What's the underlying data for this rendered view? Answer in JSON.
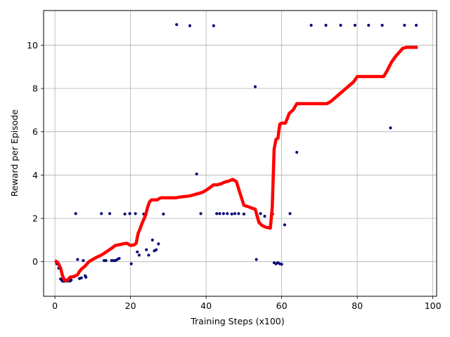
{
  "chart_data": {
    "type": "scatter",
    "xlabel": "Training Steps (x100)",
    "ylabel": "Reward per Episode",
    "xlim": [
      -3,
      101
    ],
    "ylim": [
      -1.6,
      11.6
    ],
    "xticks": [
      0,
      20,
      40,
      60,
      80,
      100
    ],
    "yticks": [
      0,
      2,
      4,
      6,
      8,
      10
    ],
    "grid": true,
    "colors": {
      "points": "#0a0a78",
      "line": "#ff0000",
      "grid": "#b0b0b0"
    },
    "series": [
      {
        "kind": "points",
        "x": [
          0.5,
          1.0,
          1.5,
          1.8,
          2.0,
          2.2,
          2.5,
          2.8,
          3.0,
          3.3,
          3.6,
          4.0,
          4.3,
          5.0,
          5.5,
          6.0,
          6.5,
          7.0,
          7.5,
          8.0,
          8.2,
          12.3,
          13.0,
          13.5,
          14.5,
          15.0,
          15.5,
          16.0,
          16.5,
          17.0,
          18.5,
          19.8,
          20.2,
          21.3,
          21.8,
          22.3,
          23.5,
          24.2,
          24.8,
          25.8,
          26.3,
          26.8,
          27.4,
          28.7,
          32.2,
          35.7,
          37.5,
          38.6,
          42.0,
          42.8,
          43.6,
          44.6,
          45.6,
          46.8,
          47.6,
          48.6,
          50.0,
          53.0,
          53.3,
          54.4,
          55.5,
          57.6,
          58.0,
          58.5,
          59.0,
          59.5,
          60.0,
          60.8,
          62.2,
          64.0,
          67.8,
          71.7,
          75.6,
          79.4,
          83.0,
          86.6,
          88.8,
          92.5,
          95.6
        ],
        "y": [
          -0.1,
          -0.3,
          -0.8,
          -0.85,
          -0.9,
          -0.9,
          -0.9,
          -0.85,
          -0.9,
          -0.9,
          -0.85,
          -0.9,
          -0.85,
          -0.7,
          2.22,
          0.1,
          -0.78,
          -0.75,
          0.05,
          -0.65,
          -0.72,
          2.22,
          0.05,
          0.05,
          2.22,
          0.05,
          0.05,
          0.05,
          0.1,
          0.15,
          2.2,
          2.22,
          -0.1,
          2.22,
          0.45,
          0.3,
          2.2,
          0.55,
          0.3,
          1.0,
          0.5,
          0.55,
          0.82,
          2.2,
          10.95,
          10.9,
          4.05,
          2.22,
          10.9,
          2.22,
          2.22,
          2.22,
          2.22,
          2.2,
          2.22,
          2.22,
          2.2,
          8.08,
          0.1,
          2.22,
          2.1,
          2.2,
          -0.05,
          -0.1,
          -0.05,
          -0.1,
          -0.12,
          1.7,
          2.22,
          5.05,
          10.92,
          10.92,
          10.92,
          10.92,
          10.92,
          10.92,
          6.18,
          10.92,
          10.92
        ]
      },
      {
        "kind": "line",
        "x": [
          0,
          0.8,
          1.5,
          2.0,
          2.5,
          3.0,
          3.5,
          4.0,
          5.0,
          5.5,
          6.0,
          6.5,
          7.0,
          8.0,
          9.0,
          10.0,
          11.0,
          12.0,
          13.0,
          14.0,
          15.0,
          16.0,
          17.0,
          18.0,
          19.0,
          20.0,
          21.0,
          21.5,
          22.0,
          22.5,
          23.0,
          24.0,
          24.5,
          25.0,
          25.5,
          26.0,
          27.0,
          28.0,
          29.0,
          30.0,
          31.0,
          32.0,
          33.0,
          34.0,
          35.0,
          36.0,
          37.0,
          38.0,
          39.0,
          40.0,
          41.0,
          42.0,
          43.0,
          44.0,
          45.0,
          46.0,
          47.0,
          48.0,
          49.0,
          50.0,
          51.0,
          52.0,
          53.0,
          54.0,
          55.0,
          56.0,
          57.0,
          57.5,
          58.0,
          58.5,
          59.0,
          59.5,
          60.0,
          61.0,
          62.0,
          63.0,
          64.0,
          65.0,
          66.0,
          67.0,
          68.0,
          69.0,
          70.0,
          71.0,
          72.0,
          73.0,
          74.0,
          75.0,
          76.0,
          77.0,
          78.0,
          79.0,
          80.0,
          82.0,
          84.0,
          86.0,
          87.0,
          88.0,
          89.0,
          90.0,
          91.0,
          92.0,
          93.0,
          94.0,
          95.0,
          96.0
        ],
        "y": [
          0.05,
          -0.05,
          -0.3,
          -0.65,
          -0.85,
          -0.88,
          -0.82,
          -0.72,
          -0.68,
          -0.65,
          -0.6,
          -0.45,
          -0.35,
          -0.2,
          0.0,
          0.1,
          0.2,
          0.28,
          0.38,
          0.5,
          0.62,
          0.75,
          0.78,
          0.82,
          0.85,
          0.75,
          0.78,
          0.85,
          1.3,
          1.5,
          1.75,
          2.15,
          2.5,
          2.75,
          2.85,
          2.85,
          2.85,
          2.95,
          2.95,
          2.95,
          2.95,
          2.95,
          2.98,
          3.0,
          3.02,
          3.05,
          3.1,
          3.15,
          3.2,
          3.3,
          3.42,
          3.55,
          3.55,
          3.6,
          3.68,
          3.72,
          3.8,
          3.7,
          3.15,
          2.6,
          2.55,
          2.48,
          2.42,
          1.8,
          1.65,
          1.58,
          1.55,
          2.5,
          5.2,
          5.65,
          5.7,
          6.35,
          6.4,
          6.4,
          6.85,
          7.0,
          7.3,
          7.3,
          7.3,
          7.3,
          7.3,
          7.3,
          7.3,
          7.3,
          7.3,
          7.4,
          7.55,
          7.7,
          7.85,
          8.0,
          8.15,
          8.3,
          8.55,
          8.55,
          8.55,
          8.55,
          8.55,
          8.85,
          9.2,
          9.45,
          9.65,
          9.85,
          9.9,
          9.9,
          9.9,
          9.9
        ]
      }
    ]
  }
}
